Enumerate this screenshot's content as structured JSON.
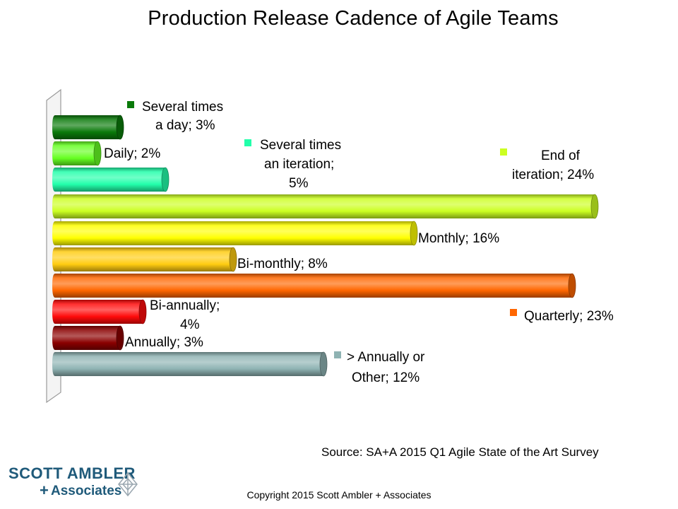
{
  "chart_data": {
    "type": "bar",
    "orientation": "horizontal",
    "title": "Production Release Cadence of Agile Teams",
    "unit": "%",
    "categories": [
      "Several times a day",
      "Daily",
      "Several times an iteration",
      "End of iteration",
      "Monthly",
      "Bi-monthly",
      "Quarterly",
      "Bi-annually",
      "Annually",
      "> Annually or Other"
    ],
    "values": [
      3,
      2,
      5,
      24,
      16,
      8,
      23,
      4,
      3,
      12
    ],
    "colors": [
      "#0a7a0a",
      "#66ff22",
      "#22ffaa",
      "#ccff22",
      "#ffff00",
      "#ffcc11",
      "#ff6600",
      "#ff0a0a",
      "#8b0000",
      "#8fb3b3"
    ],
    "labels": [
      [
        "Several times",
        "a day; 3%"
      ],
      [
        "Daily; 2%"
      ],
      [
        "Several times",
        "an iteration;",
        "5%"
      ],
      [
        "End of",
        "iteration; 24%"
      ],
      [
        "Monthly; 16%"
      ],
      [
        "Bi-monthly; 8%"
      ],
      [
        "Quarterly; 23%"
      ],
      [
        "Bi-annually;",
        "4%"
      ],
      [
        "Annually; 3%"
      ],
      [
        "> Annually or",
        "Other; 12%"
      ]
    ],
    "legend_marker": [
      true,
      false,
      true,
      true,
      false,
      false,
      true,
      false,
      false,
      true
    ],
    "xlim": [
      0,
      24
    ],
    "grid": false,
    "legend": "none"
  },
  "source": "Source: SA+A 2015 Q1 Agile State of the Art Survey",
  "copyright": "Copyright 2015 Scott Ambler + Associates",
  "logo": {
    "line1": "SCOTT AMBLER",
    "plus": "+",
    "line2": "Associates",
    "color": "#1f5a7a"
  }
}
